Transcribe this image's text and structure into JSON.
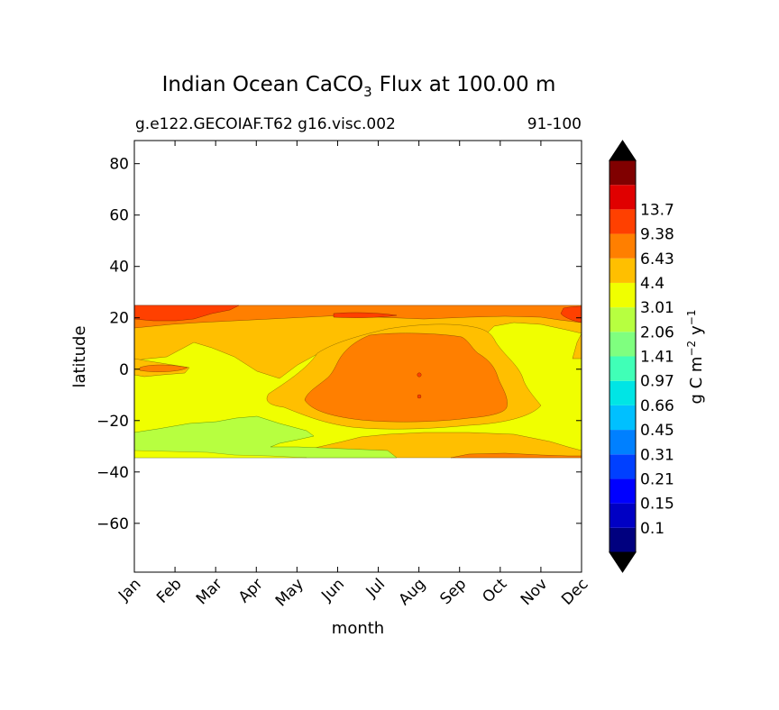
{
  "chart_data": {
    "type": "heatmap",
    "title": "Indian Ocean CaCO",
    "title_subscript": "3",
    "title_suffix": "Flux at 100.00 m",
    "subtitle_left": "g.e122.GECOIAF.T62 g16.visc.002",
    "subtitle_right": "91-100",
    "xlabel": "month",
    "ylabel": "latitude",
    "x_categories": [
      "Jan",
      "Feb",
      "Mar",
      "Apr",
      "May",
      "Jun",
      "Jul",
      "Aug",
      "Sep",
      "Oct",
      "Nov",
      "Dec"
    ],
    "y_ticks": [
      80,
      60,
      40,
      20,
      0,
      -20,
      -40,
      -60
    ],
    "y_tick_labels": [
      "80",
      "60",
      "40",
      "20",
      "0",
      "−20",
      "−40",
      "−60"
    ],
    "ylim": [
      -79,
      89
    ],
    "data_lat_range": [
      -34,
      25
    ],
    "colorbar": {
      "label_prefix": "g C m",
      "label_exp1": "−2",
      "label_mid": "y",
      "label_exp2": "−1",
      "levels": [
        "0.1",
        "0.15",
        "0.21",
        "0.31",
        "0.45",
        "0.66",
        "0.97",
        "1.41",
        "2.06",
        "3.01",
        "4.4",
        "6.43",
        "9.38",
        "13.7"
      ],
      "colors": [
        "#00007f",
        "#0000c4",
        "#0000ff",
        "#0040ff",
        "#0080ff",
        "#00c0ff",
        "#00e5e5",
        "#40ffb7",
        "#7fff7f",
        "#b7ff40",
        "#f0ff00",
        "#ffbf00",
        "#ff7f00",
        "#ff4000",
        "#e00000",
        "#800000"
      ],
      "under_color": "#000000",
      "over_color": "#000000"
    },
    "regions": [
      {
        "level_band": "2.06-3.01",
        "color": "#f0ff00",
        "description": "background",
        "lat_range": [
          -34,
          25
        ],
        "month_range": [
          "Jan",
          "Dec"
        ]
      },
      {
        "level_band": "3.01-4.4",
        "color": "#ffbf00",
        "lat_range": [
          -34,
          25
        ],
        "month_range": [
          "Jan",
          "Dec"
        ]
      },
      {
        "level_band": "4.4-6.43",
        "color": "#ff7f00",
        "lat_range": [
          -17,
          15
        ],
        "month_range": [
          "Jun",
          "Sep"
        ]
      },
      {
        "level_band": "1.41-2.06",
        "color": "#b7ff40",
        "lat_range": [
          -33,
          -17
        ],
        "month_range": [
          "Jan",
          "May"
        ]
      },
      {
        "level_band": "6.43-9.38",
        "color": "#ff4000",
        "lat_range": [
          19,
          25
        ],
        "month_range": [
          "Jan",
          "Mar"
        ]
      }
    ]
  }
}
